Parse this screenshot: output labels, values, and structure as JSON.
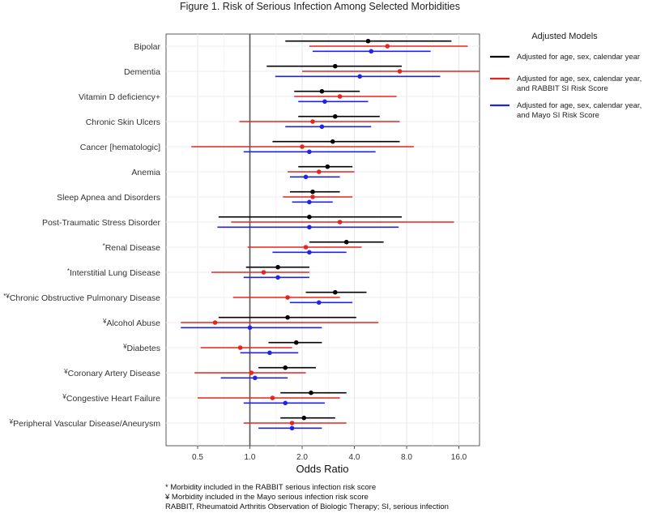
{
  "chart_data": {
    "type": "forest",
    "title": "Figure 1. Risk of Serious Infection Among Selected Morbidities",
    "xlabel": "Odds Ratio",
    "x_scale": "log2",
    "xlim": [
      0.35,
      22
    ],
    "x_ticks": [
      0.5,
      1.0,
      2.0,
      4.0,
      8.0,
      16.0
    ],
    "x_tick_labels": [
      "0.5",
      "1.0",
      "2.0",
      "4.0",
      "8.0",
      "16.0"
    ],
    "reference_line": 1.0,
    "grid": true,
    "legend_title": "Adjusted Models",
    "legend_position": "right",
    "series": [
      {
        "name": "Adjusted for age, sex, calendar year",
        "color": "#000000"
      },
      {
        "name": "Adjusted for age, sex, calendar year, and RABBIT SI Risk Score",
        "color": "#e8231c"
      },
      {
        "name": "Adjusted for age, sex, calendar year, and Mayo SI Risk Score",
        "color": "#1f24e6"
      }
    ],
    "categories": [
      {
        "label": "Bipolar",
        "marker": "",
        "estimates": [
          [
            4.8,
            1.6,
            14.5
          ],
          [
            6.2,
            2.2,
            18.0
          ],
          [
            5.0,
            2.3,
            11.0
          ]
        ]
      },
      {
        "label": "Dementia",
        "marker": "",
        "estimates": [
          [
            3.1,
            1.25,
            7.5
          ],
          [
            7.3,
            2.0,
            22.0
          ],
          [
            4.3,
            1.4,
            12.5
          ]
        ]
      },
      {
        "label": "Vitamin D deficiency+",
        "marker": "",
        "estimates": [
          [
            2.6,
            1.8,
            4.3
          ],
          [
            3.3,
            1.8,
            7.0
          ],
          [
            2.7,
            1.9,
            4.8
          ]
        ]
      },
      {
        "label": "Chronic Skin Ulcers",
        "marker": "",
        "estimates": [
          [
            3.1,
            1.9,
            5.6
          ],
          [
            2.3,
            0.87,
            7.3
          ],
          [
            2.6,
            1.6,
            5.0
          ]
        ]
      },
      {
        "label": "Cancer [hematologic]",
        "marker": "",
        "estimates": [
          [
            3.0,
            1.35,
            7.3
          ],
          [
            2.0,
            0.46,
            8.8
          ],
          [
            2.2,
            0.92,
            5.3
          ]
        ]
      },
      {
        "label": "Anemia",
        "marker": "",
        "estimates": [
          [
            2.8,
            1.9,
            3.9
          ],
          [
            2.5,
            1.65,
            4.0
          ],
          [
            2.1,
            1.7,
            3.3
          ]
        ]
      },
      {
        "label": "Sleep Apnea and Disorders",
        "marker": "",
        "estimates": [
          [
            2.3,
            1.7,
            3.3
          ],
          [
            2.3,
            1.55,
            3.9
          ],
          [
            2.2,
            1.75,
            3.0
          ]
        ]
      },
      {
        "label": "Post-Traumatic Stress Disorder",
        "marker": "",
        "estimates": [
          [
            2.2,
            0.66,
            7.5
          ],
          [
            3.3,
            0.78,
            15.0
          ],
          [
            2.2,
            0.65,
            7.2
          ]
        ]
      },
      {
        "label": "Renal Disease",
        "marker": "*",
        "estimates": [
          [
            3.6,
            2.2,
            5.9
          ],
          [
            2.1,
            0.97,
            4.4
          ],
          [
            2.2,
            1.35,
            3.6
          ]
        ]
      },
      {
        "label": "Interstitial Lung Disease",
        "marker": "*",
        "estimates": [
          [
            1.45,
            0.95,
            2.2
          ],
          [
            1.2,
            0.6,
            2.2
          ],
          [
            1.45,
            0.92,
            2.2
          ]
        ]
      },
      {
        "label": "Chronic Obstructive Pulmonary Disease",
        "marker": "*¥",
        "estimates": [
          [
            3.1,
            2.1,
            4.7
          ],
          [
            1.65,
            0.8,
            3.3
          ],
          [
            2.5,
            1.7,
            3.9
          ]
        ]
      },
      {
        "label": "Alcohol Abuse",
        "marker": "¥",
        "estimates": [
          [
            1.65,
            0.66,
            4.1
          ],
          [
            0.63,
            0.4,
            5.5
          ],
          [
            1.0,
            0.4,
            2.6
          ]
        ]
      },
      {
        "label": "Diabetes",
        "marker": "¥",
        "estimates": [
          [
            1.85,
            1.28,
            2.6
          ],
          [
            0.88,
            0.52,
            1.75
          ],
          [
            1.3,
            0.88,
            1.9
          ]
        ]
      },
      {
        "label": "Coronary Artery Disease",
        "marker": "¥",
        "estimates": [
          [
            1.6,
            1.12,
            2.4
          ],
          [
            1.02,
            0.48,
            2.1
          ],
          [
            1.07,
            0.68,
            1.65
          ]
        ]
      },
      {
        "label": "Congestive Heart Failure",
        "marker": "¥",
        "estimates": [
          [
            2.25,
            1.5,
            3.6
          ],
          [
            1.35,
            0.5,
            3.3
          ],
          [
            1.6,
            0.92,
            2.7
          ]
        ]
      },
      {
        "label": "Peripheral Vascular Disease/Aneurysm",
        "marker": "¥",
        "estimates": [
          [
            2.05,
            1.5,
            3.1
          ],
          [
            1.75,
            0.92,
            3.6
          ],
          [
            1.75,
            1.12,
            2.6
          ]
        ]
      }
    ]
  },
  "footnotes": [
    "* Morbidity included in the RABBIT serious infection risk score",
    "¥ Morbidity included in the Mayo serious infection risk score",
    "RABBIT, Rheumatoid Arthritis Observation of Biologic Therapy; SI, serious infection"
  ]
}
